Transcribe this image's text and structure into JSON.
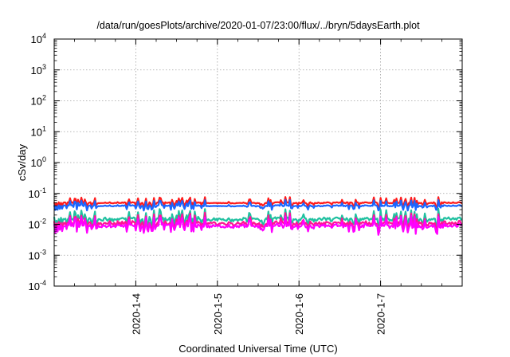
{
  "chart_data": {
    "type": "line",
    "title": "/data/run/goesPlots/archive/2020-01-07/23:00/flux/../bryn/5daysEarth.plot",
    "xlabel": "Coordinated Universal Time (UTC)",
    "ylabel": "cSv/day",
    "yscale": "log",
    "ylim": [
      0.0001,
      10000
    ],
    "y_ticks": [
      {
        "base": "10",
        "exp": "-4"
      },
      {
        "base": "10",
        "exp": "-3"
      },
      {
        "base": "10",
        "exp": "-2"
      },
      {
        "base": "10",
        "exp": "-1"
      },
      {
        "base": "10",
        "exp": "0"
      },
      {
        "base": "10",
        "exp": "1"
      },
      {
        "base": "10",
        "exp": "2"
      },
      {
        "base": "10",
        "exp": "3"
      },
      {
        "base": "10",
        "exp": "4"
      }
    ],
    "x_range": [
      "2020-01-03T00:00",
      "2020-01-08T00:00"
    ],
    "x_ticks": [
      "2020-1-4",
      "2020-1-5",
      "2020-1-6",
      "2020-1-7"
    ],
    "grid": true,
    "legend": "none",
    "series": [
      {
        "color": "#ff1a1a",
        "baseline": 0.05,
        "dips": [
          0.045,
          0.015
        ]
      },
      {
        "color": "#1a66ff",
        "baseline": 0.04,
        "dips": [
          0.032,
          0.011
        ]
      },
      {
        "color": "#20c0a0",
        "baseline": 0.015,
        "dips": [
          0.013,
          0.008
        ]
      },
      {
        "color": "#ff1493",
        "baseline": 0.011,
        "dips": [
          0.009,
          0.0065
        ]
      },
      {
        "color": "#ff00ff",
        "baseline": 0.009,
        "dips": [
          0.0075,
          0.006
        ]
      }
    ]
  }
}
